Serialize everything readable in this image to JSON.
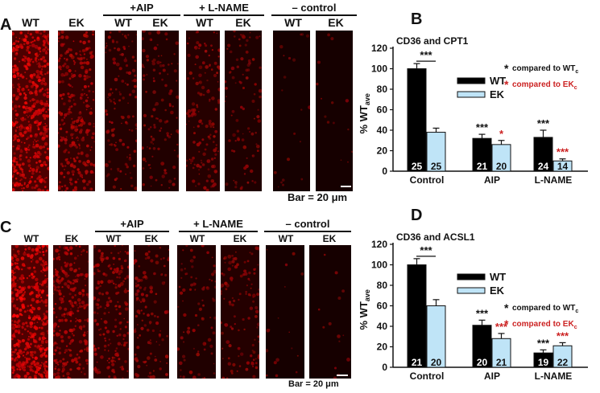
{
  "top_row": {
    "letter": "A",
    "labels": [
      "WT",
      "EK",
      "WT",
      "EK",
      "WT",
      "EK",
      "WT",
      "EK"
    ],
    "groups": [
      "+AIP",
      "+ L-NAME",
      "– control"
    ],
    "bar": "Bar = 20 μm",
    "intensity": [
      0.95,
      0.55,
      0.28,
      0.22,
      0.3,
      0.18,
      0.04,
      0.03
    ]
  },
  "bottom_row": {
    "letter": "C",
    "labels": [
      "WT",
      "EK",
      "WT",
      "EK",
      "WT",
      "EK",
      "WT",
      "EK"
    ],
    "groups": [
      "+AIP",
      "+ L-NAME",
      "– control"
    ],
    "bar": "Bar = 20 μm",
    "intensity": [
      1.0,
      0.62,
      0.45,
      0.3,
      0.2,
      0.26,
      0.04,
      0.03
    ]
  },
  "colors": {
    "wt": "#000000",
    "ek": "#bfe4f7",
    "sig_red": "#cc2222",
    "cell_red": "#ff1a1a"
  },
  "chart_data": [
    {
      "letter": "B",
      "type": "bar",
      "title": "CD36 and CPT1",
      "ylabel": "% WT",
      "ylabel_sub": "ave",
      "ylim": [
        0,
        120
      ],
      "yticks": [
        0,
        20,
        40,
        60,
        80,
        100,
        120
      ],
      "categories": [
        "Control",
        "AIP",
        "L-NAME"
      ],
      "series": [
        {
          "name": "WT",
          "values": [
            100,
            32,
            33
          ],
          "errors": [
            5,
            4,
            7
          ],
          "n": [
            "25",
            "21",
            "24"
          ],
          "sig": [
            "",
            "***",
            "***"
          ]
        },
        {
          "name": "EK",
          "values": [
            38,
            26,
            10
          ],
          "errors": [
            4,
            4,
            2
          ],
          "n": [
            "25",
            "20",
            "14"
          ],
          "sig": [
            "",
            "*",
            "***"
          ]
        }
      ],
      "bracket_sig": "***",
      "legend_notes": [
        {
          "text": "compared to WT",
          "sub": "c"
        },
        {
          "text": "compared to EK",
          "sub": "c"
        }
      ]
    },
    {
      "letter": "D",
      "type": "bar",
      "title": "CD36 and ACSL1",
      "ylabel": "% WT",
      "ylabel_sub": "ave",
      "ylim": [
        0,
        120
      ],
      "yticks": [
        0,
        20,
        40,
        60,
        80,
        100,
        120
      ],
      "categories": [
        "Control",
        "AIP",
        "L-NAME"
      ],
      "series": [
        {
          "name": "WT",
          "values": [
            100,
            41,
            14
          ],
          "errors": [
            6,
            5,
            3
          ],
          "n": [
            "21",
            "20",
            "19"
          ],
          "sig": [
            "",
            "***",
            "***"
          ]
        },
        {
          "name": "EK",
          "values": [
            60,
            28,
            21
          ],
          "errors": [
            6,
            5,
            3
          ],
          "n": [
            "20",
            "21",
            "22"
          ],
          "sig": [
            "",
            "***",
            "***"
          ]
        }
      ],
      "bracket_sig": "***",
      "legend_notes": [
        {
          "text": "compared to WT",
          "sub": "c"
        },
        {
          "text": "compared to EK",
          "sub": "c"
        }
      ]
    }
  ]
}
